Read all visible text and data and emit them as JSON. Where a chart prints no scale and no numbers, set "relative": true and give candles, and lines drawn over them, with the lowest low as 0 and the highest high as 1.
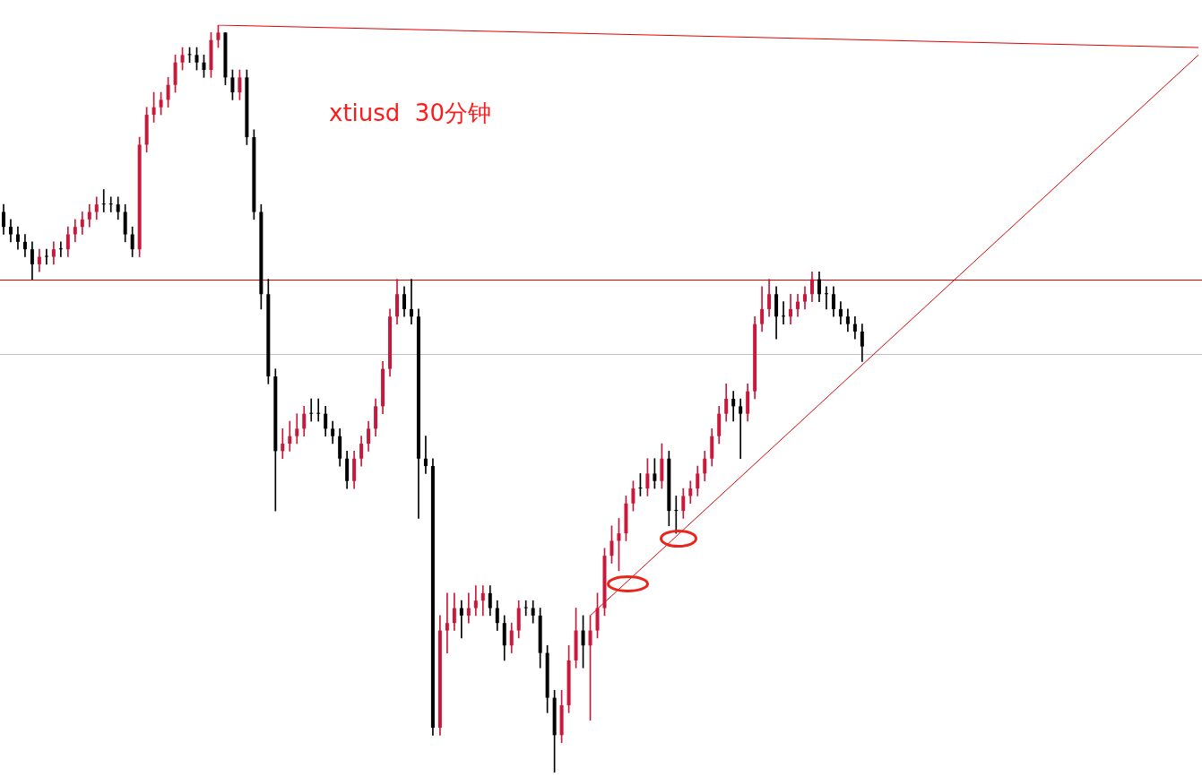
{
  "chart_data": {
    "type": "candlestick",
    "title": "xtiusd  30分钟",
    "relative": true,
    "legend": false,
    "categories": [
      null,
      null,
      null,
      null,
      null,
      null,
      null,
      null,
      null,
      null,
      null,
      null,
      null,
      null,
      null,
      null,
      null,
      null,
      null,
      null,
      null,
      null,
      null,
      null,
      null,
      null,
      null,
      null,
      null,
      null,
      null,
      null,
      null,
      null,
      null,
      null,
      null,
      null,
      null,
      null,
      null,
      null,
      null,
      null,
      null,
      null,
      null,
      null,
      null,
      null,
      null,
      null,
      null,
      null,
      null,
      null,
      null,
      null,
      null,
      null,
      null,
      null,
      null,
      null,
      null,
      null,
      null,
      null,
      null,
      null,
      null,
      null,
      null,
      null,
      null,
      null,
      null,
      null,
      null,
      null,
      null,
      null,
      null,
      null,
      null,
      null,
      null,
      null,
      null,
      null,
      null,
      null,
      null,
      null,
      null,
      null,
      null,
      null,
      null,
      null,
      null,
      null,
      null,
      null,
      null,
      null,
      null,
      null,
      null,
      null,
      null,
      null,
      null,
      null,
      null,
      null,
      null,
      null,
      null,
      null,
      null,
      null,
      null,
      null,
      null,
      null,
      null,
      null,
      null,
      null,
      null,
      null,
      null,
      null,
      null,
      null,
      null,
      null,
      null,
      null,
      null,
      null,
      null,
      null,
      null,
      null,
      null,
      null,
      null,
      null,
      null,
      null,
      null,
      null,
      null,
      null,
      null,
      null,
      null,
      null,
      null,
      null,
      null,
      null,
      null,
      null,
      null,
      null
    ],
    "ohlc": [
      [
        0.75,
        0.76,
        0.72,
        0.73
      ],
      [
        0.73,
        0.74,
        0.71,
        0.72
      ],
      [
        0.72,
        0.73,
        0.7,
        0.71
      ],
      [
        0.71,
        0.72,
        0.69,
        0.7
      ],
      [
        0.7,
        0.71,
        0.66,
        0.68
      ],
      [
        0.68,
        0.7,
        0.67,
        0.69
      ],
      [
        0.69,
        0.7,
        0.68,
        0.69
      ],
      [
        0.69,
        0.71,
        0.68,
        0.7
      ],
      [
        0.7,
        0.71,
        0.69,
        0.7
      ],
      [
        0.7,
        0.73,
        0.69,
        0.72
      ],
      [
        0.72,
        0.74,
        0.71,
        0.73
      ],
      [
        0.73,
        0.75,
        0.72,
        0.74
      ],
      [
        0.74,
        0.76,
        0.73,
        0.75
      ],
      [
        0.75,
        0.77,
        0.74,
        0.76
      ],
      [
        0.76,
        0.78,
        0.75,
        0.76
      ],
      [
        0.76,
        0.77,
        0.75,
        0.76
      ],
      [
        0.76,
        0.77,
        0.74,
        0.75
      ],
      [
        0.75,
        0.76,
        0.71,
        0.72
      ],
      [
        0.72,
        0.73,
        0.69,
        0.7
      ],
      [
        0.7,
        0.85,
        0.69,
        0.84
      ],
      [
        0.84,
        0.89,
        0.83,
        0.88
      ],
      [
        0.88,
        0.91,
        0.87,
        0.89
      ],
      [
        0.89,
        0.91,
        0.88,
        0.9
      ],
      [
        0.9,
        0.93,
        0.89,
        0.92
      ],
      [
        0.92,
        0.96,
        0.91,
        0.95
      ],
      [
        0.95,
        0.97,
        0.94,
        0.96
      ],
      [
        0.96,
        0.97,
        0.95,
        0.96
      ],
      [
        0.96,
        0.97,
        0.94,
        0.95
      ],
      [
        0.95,
        0.96,
        0.93,
        0.94
      ],
      [
        0.94,
        0.99,
        0.93,
        0.98
      ],
      [
        0.98,
        1.0,
        0.97,
        0.99
      ],
      [
        0.99,
        0.99,
        0.92,
        0.93
      ],
      [
        0.93,
        0.94,
        0.9,
        0.91
      ],
      [
        0.91,
        0.94,
        0.9,
        0.93
      ],
      [
        0.93,
        0.94,
        0.84,
        0.85
      ],
      [
        0.85,
        0.86,
        0.74,
        0.75
      ],
      [
        0.75,
        0.76,
        0.62,
        0.64
      ],
      [
        0.64,
        0.66,
        0.52,
        0.53
      ],
      [
        0.53,
        0.54,
        0.35,
        0.43
      ],
      [
        0.43,
        0.46,
        0.42,
        0.44
      ],
      [
        0.44,
        0.47,
        0.43,
        0.45
      ],
      [
        0.45,
        0.48,
        0.44,
        0.46
      ],
      [
        0.46,
        0.49,
        0.45,
        0.48
      ],
      [
        0.48,
        0.5,
        0.47,
        0.48
      ],
      [
        0.48,
        0.5,
        0.47,
        0.48
      ],
      [
        0.48,
        0.49,
        0.45,
        0.46
      ],
      [
        0.46,
        0.47,
        0.44,
        0.45
      ],
      [
        0.45,
        0.46,
        0.41,
        0.42
      ],
      [
        0.42,
        0.43,
        0.38,
        0.39
      ],
      [
        0.39,
        0.43,
        0.38,
        0.42
      ],
      [
        0.42,
        0.45,
        0.41,
        0.44
      ],
      [
        0.44,
        0.47,
        0.43,
        0.46
      ],
      [
        0.46,
        0.5,
        0.45,
        0.49
      ],
      [
        0.49,
        0.55,
        0.48,
        0.54
      ],
      [
        0.54,
        0.62,
        0.53,
        0.61
      ],
      [
        0.61,
        0.66,
        0.6,
        0.64
      ],
      [
        0.64,
        0.65,
        0.61,
        0.62
      ],
      [
        0.62,
        0.66,
        0.6,
        0.61
      ],
      [
        0.61,
        0.62,
        0.34,
        0.42
      ],
      [
        0.42,
        0.45,
        0.4,
        0.41
      ],
      [
        0.41,
        0.42,
        0.05,
        0.06
      ],
      [
        0.06,
        0.21,
        0.05,
        0.19
      ],
      [
        0.19,
        0.24,
        0.16,
        0.2
      ],
      [
        0.2,
        0.24,
        0.19,
        0.22
      ],
      [
        0.22,
        0.23,
        0.18,
        0.21
      ],
      [
        0.21,
        0.24,
        0.2,
        0.22
      ],
      [
        0.22,
        0.25,
        0.21,
        0.23
      ],
      [
        0.23,
        0.25,
        0.21,
        0.24
      ],
      [
        0.24,
        0.25,
        0.21,
        0.22
      ],
      [
        0.22,
        0.23,
        0.19,
        0.2
      ],
      [
        0.2,
        0.21,
        0.15,
        0.17
      ],
      [
        0.17,
        0.2,
        0.16,
        0.19
      ],
      [
        0.19,
        0.23,
        0.18,
        0.22
      ],
      [
        0.22,
        0.23,
        0.21,
        0.22
      ],
      [
        0.22,
        0.23,
        0.2,
        0.21
      ],
      [
        0.21,
        0.22,
        0.14,
        0.16
      ],
      [
        0.16,
        0.17,
        0.08,
        0.1
      ],
      [
        0.1,
        0.11,
        0.0,
        0.05
      ],
      [
        0.05,
        0.11,
        0.04,
        0.09
      ],
      [
        0.09,
        0.17,
        0.08,
        0.15
      ],
      [
        0.15,
        0.22,
        0.14,
        0.19
      ],
      [
        0.19,
        0.21,
        0.14,
        0.17
      ],
      [
        0.17,
        0.21,
        0.07,
        0.19
      ],
      [
        0.19,
        0.24,
        0.18,
        0.22
      ],
      [
        0.22,
        0.3,
        0.21,
        0.29
      ],
      [
        0.29,
        0.33,
        0.28,
        0.31
      ],
      [
        0.31,
        0.34,
        0.27,
        0.32
      ],
      [
        0.32,
        0.37,
        0.31,
        0.36
      ],
      [
        0.36,
        0.39,
        0.35,
        0.38
      ],
      [
        0.38,
        0.4,
        0.37,
        0.38
      ],
      [
        0.38,
        0.42,
        0.37,
        0.4
      ],
      [
        0.4,
        0.42,
        0.38,
        0.39
      ],
      [
        0.39,
        0.44,
        0.38,
        0.42
      ],
      [
        0.42,
        0.43,
        0.33,
        0.35
      ],
      [
        0.35,
        0.37,
        0.32,
        0.35
      ],
      [
        0.35,
        0.38,
        0.34,
        0.37
      ],
      [
        0.37,
        0.39,
        0.36,
        0.38
      ],
      [
        0.38,
        0.41,
        0.37,
        0.4
      ],
      [
        0.4,
        0.43,
        0.39,
        0.42
      ],
      [
        0.42,
        0.46,
        0.41,
        0.45
      ],
      [
        0.45,
        0.49,
        0.44,
        0.48
      ],
      [
        0.48,
        0.52,
        0.47,
        0.5
      ],
      [
        0.5,
        0.51,
        0.47,
        0.49
      ],
      [
        0.49,
        0.5,
        0.42,
        0.48
      ],
      [
        0.48,
        0.52,
        0.47,
        0.51
      ],
      [
        0.51,
        0.61,
        0.5,
        0.6
      ],
      [
        0.6,
        0.65,
        0.59,
        0.62
      ],
      [
        0.62,
        0.66,
        0.61,
        0.64
      ],
      [
        0.64,
        0.65,
        0.58,
        0.61
      ],
      [
        0.61,
        0.63,
        0.6,
        0.61
      ],
      [
        0.61,
        0.64,
        0.6,
        0.62
      ],
      [
        0.62,
        0.64,
        0.61,
        0.63
      ],
      [
        0.63,
        0.65,
        0.62,
        0.64
      ],
      [
        0.64,
        0.67,
        0.63,
        0.66
      ],
      [
        0.66,
        0.67,
        0.63,
        0.64
      ],
      [
        0.64,
        0.65,
        0.62,
        0.64
      ],
      [
        0.64,
        0.65,
        0.61,
        0.62
      ],
      [
        0.62,
        0.63,
        0.6,
        0.61
      ],
      [
        0.61,
        0.62,
        0.59,
        0.6
      ],
      [
        0.6,
        0.61,
        0.58,
        0.59
      ],
      [
        0.59,
        0.6,
        0.55,
        0.57
      ],
      null,
      null,
      null,
      null,
      null,
      null,
      null,
      null,
      null,
      null,
      null,
      null,
      null,
      null,
      null,
      null,
      null,
      null,
      null,
      null,
      null,
      null,
      null,
      null,
      null,
      null,
      null,
      null,
      null,
      null,
      null,
      null,
      null,
      null,
      null,
      null,
      null,
      null,
      null,
      null,
      null,
      null,
      null,
      null,
      null,
      null,
      null
    ],
    "colors": [
      "#000000",
      "#000000",
      "#000000",
      "#000000",
      "#000000",
      "#c8193c",
      "#000000",
      "#c8193c",
      "#000000",
      "#c8193c",
      "#c8193c",
      "#c8193c",
      "#c8193c",
      "#c8193c",
      "#000000",
      "#000000",
      "#000000",
      "#000000",
      "#000000",
      "#c8193c",
      "#c8193c",
      "#c8193c",
      "#c8193c",
      "#c8193c",
      "#c8193c",
      "#c8193c",
      "#000000",
      "#000000",
      "#000000",
      "#c8193c",
      "#c8193c",
      "#000000",
      "#000000",
      "#c8193c",
      "#000000",
      "#000000",
      "#000000",
      "#000000",
      "#000000",
      "#c8193c",
      "#c8193c",
      "#c8193c",
      "#c8193c",
      "#000000",
      "#000000",
      "#000000",
      "#000000",
      "#000000",
      "#000000",
      "#c8193c",
      "#c8193c",
      "#c8193c",
      "#c8193c",
      "#c8193c",
      "#c8193c",
      "#c8193c",
      "#000000",
      "#000000",
      "#000000",
      "#000000",
      "#000000",
      "#c8193c",
      "#c8193c",
      "#c8193c",
      "#000000",
      "#c8193c",
      "#c8193c",
      "#c8193c",
      "#000000",
      "#000000",
      "#000000",
      "#c8193c",
      "#c8193c",
      "#000000",
      "#000000",
      "#000000",
      "#000000",
      "#000000",
      "#c8193c",
      "#c8193c",
      "#c8193c",
      "#000000",
      "#c8193c",
      "#c8193c",
      "#c8193c",
      "#c8193c",
      "#c8193c",
      "#c8193c",
      "#c8193c",
      "#000000",
      "#c8193c",
      "#000000",
      "#c8193c",
      "#000000",
      "#000000",
      "#c8193c",
      "#c8193c",
      "#c8193c",
      "#c8193c",
      "#c8193c",
      "#c8193c",
      "#c8193c",
      "#000000",
      "#000000",
      "#c8193c",
      "#c8193c",
      "#c8193c",
      "#c8193c",
      "#000000",
      "#000000",
      "#c8193c",
      "#c8193c",
      "#c8193c",
      "#c8193c",
      "#000000",
      "#000000",
      "#000000",
      "#000000",
      "#000000",
      "#000000",
      "#000000",
      null,
      null,
      null,
      null,
      null,
      null,
      null,
      null,
      null,
      null,
      null,
      null,
      null,
      null,
      null,
      null,
      null,
      null,
      null,
      null,
      null,
      null,
      null,
      null,
      null,
      null,
      null,
      null,
      null,
      null,
      null,
      null,
      null,
      null,
      null,
      null,
      null,
      null,
      null,
      null,
      null,
      null,
      null,
      null,
      null,
      null,
      null
    ],
    "series": [
      {
        "type": "line",
        "color": "#e00000",
        "values": [
          null,
          null,
          null,
          null,
          null,
          null,
          null,
          null,
          null,
          null,
          null,
          null,
          null,
          null,
          null,
          null,
          null,
          null,
          null,
          null,
          null,
          null,
          null,
          null,
          null,
          null,
          null,
          null,
          null,
          null,
          1.0,
          null,
          null,
          null,
          null,
          null,
          null,
          null,
          null,
          null,
          null,
          null,
          null,
          null,
          null,
          null,
          null,
          null,
          null,
          null,
          null,
          null,
          null,
          null,
          null,
          null,
          null,
          null,
          null,
          null,
          null,
          null,
          null,
          null,
          null,
          null,
          null,
          null,
          null,
          null,
          null,
          null,
          null,
          null,
          null,
          null,
          null,
          null,
          null,
          null,
          null,
          null,
          null,
          null,
          null,
          null,
          null,
          null,
          null,
          null,
          null,
          null,
          null,
          null,
          null,
          null,
          null,
          null,
          null,
          null,
          null,
          null,
          null,
          null,
          null,
          null,
          null,
          null,
          null,
          null,
          null,
          null,
          null,
          null,
          null,
          null,
          null,
          null,
          null,
          null,
          null,
          null,
          null,
          null,
          null,
          null,
          null,
          null,
          null,
          null,
          null,
          null,
          null,
          null,
          null,
          null,
          null,
          null,
          null,
          null,
          null,
          null,
          null,
          null,
          null,
          null,
          null,
          null,
          null,
          null,
          null,
          null,
          null,
          null,
          null,
          null,
          null,
          null,
          null,
          null,
          null,
          null,
          null,
          null,
          null,
          null,
          null,
          0.97
        ]
      },
      {
        "type": "line",
        "color": "#e00000",
        "values": [
          null,
          null,
          null,
          null,
          null,
          null,
          null,
          null,
          null,
          null,
          null,
          null,
          null,
          null,
          null,
          null,
          null,
          null,
          null,
          null,
          null,
          null,
          null,
          null,
          null,
          null,
          null,
          null,
          null,
          null,
          null,
          null,
          null,
          null,
          null,
          null,
          null,
          null,
          null,
          null,
          null,
          null,
          null,
          null,
          null,
          null,
          null,
          null,
          null,
          null,
          null,
          null,
          null,
          null,
          null,
          null,
          null,
          null,
          null,
          null,
          null,
          null,
          null,
          null,
          null,
          null,
          null,
          null,
          null,
          null,
          null,
          null,
          null,
          null,
          null,
          null,
          null,
          null,
          null,
          null,
          null,
          null,
          0.21,
          null,
          null,
          null,
          null,
          null,
          null,
          null,
          null,
          null,
          null,
          null,
          null,
          null,
          null,
          null,
          null,
          null,
          null,
          null,
          null,
          null,
          null,
          null,
          null,
          null,
          null,
          null,
          null,
          null,
          null,
          null,
          null,
          null,
          null,
          null,
          null,
          null,
          null,
          null,
          null,
          null,
          null,
          null,
          null,
          null,
          null,
          null,
          null,
          null,
          null,
          null,
          null,
          null,
          null,
          null,
          null,
          null,
          null,
          null,
          null,
          null,
          null,
          null,
          null,
          null,
          null,
          null,
          null,
          null,
          null,
          null,
          null,
          null,
          null,
          null,
          null,
          null,
          null,
          null,
          null,
          null,
          null,
          null,
          null,
          0.96
        ]
      }
    ],
    "ref_lines": [
      {
        "axis": "y",
        "value": 0.66,
        "color": "#e00000"
      },
      {
        "axis": "y",
        "value": 0.56,
        "color": "#c0c0c0"
      }
    ]
  }
}
